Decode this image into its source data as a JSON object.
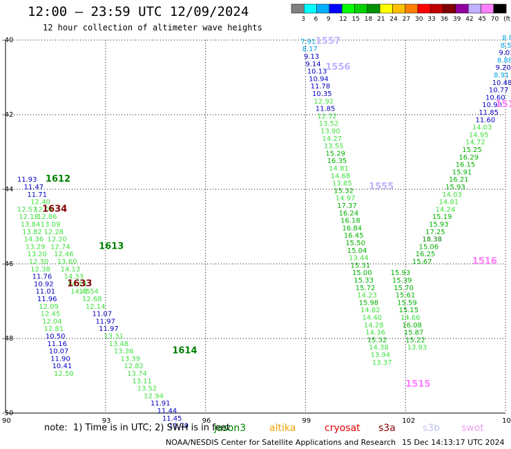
{
  "title": "12:00 — 23:59 UTC 12/09/2024",
  "subtitle": "12 hour collection of altimeter wave heights",
  "note": "note:  1) Time is in UTC; 2) SWH is in feet",
  "credit": "NOAA/NESDIS Center for Satellite Applications and Research",
  "timestamp": "15 Dec 14:13:17 UTC 2024",
  "satellites": [
    {
      "label": "jason3",
      "color": "#008000"
    },
    {
      "label": "altika",
      "color": "#f0a000"
    },
    {
      "label": "cryosat",
      "color": "#e00000"
    },
    {
      "label": "s3a",
      "color": "#8b0000"
    },
    {
      "label": "s3b",
      "color": "#c0c0f0"
    },
    {
      "label": "swot",
      "color": "#f0a0f0"
    }
  ],
  "legend": {
    "labels": [
      "3",
      "6",
      "9",
      "12",
      "15",
      "18",
      "21",
      "24",
      "27",
      "30",
      "33",
      "36",
      "39",
      "42",
      "45",
      "70",
      "(ft)"
    ],
    "colors": [
      "#808080",
      "#00ffff",
      "#00b0ff",
      "#0000ff",
      "#00ff00",
      "#00d000",
      "#009000",
      "#ffff00",
      "#ffc000",
      "#ff8000",
      "#ff0000",
      "#c00000",
      "#800000",
      "#9000a0",
      "#c0b0ff",
      "#ff80ff",
      "#000000"
    ]
  },
  "chart_data": {
    "type": "scatter",
    "xlim": [
      90,
      105
    ],
    "ylim": [
      -50,
      -40
    ],
    "x_ticks": [
      "90",
      "93",
      "96",
      "99",
      "102",
      "105"
    ],
    "y_ticks": [
      "-40",
      "-42",
      "-44",
      "-46",
      "-48",
      "-50"
    ],
    "grid": true,
    "tracks": [
      {
        "id": "1612",
        "color": "#008000",
        "label_at": [
          91.2,
          -43.8
        ],
        "points": [
          [
            90.35,
            -43.8,
            "11.93"
          ],
          [
            90.55,
            -44.0,
            "11.47"
          ],
          [
            90.65,
            -44.2,
            "11.71"
          ],
          [
            90.75,
            -44.4,
            "12.40"
          ],
          [
            90.85,
            -44.6,
            "12.01"
          ],
          [
            90.95,
            -44.8,
            "12.86"
          ],
          [
            91.05,
            -45.0,
            "13.09"
          ],
          [
            91.15,
            -45.2,
            "12.28"
          ],
          [
            91.25,
            -45.4,
            "12.20"
          ],
          [
            91.35,
            -45.6,
            "12.74"
          ],
          [
            91.45,
            -45.8,
            "12.46"
          ],
          [
            91.55,
            -46.0,
            "13.60"
          ],
          [
            91.65,
            -46.2,
            "14.13"
          ],
          [
            91.75,
            -46.4,
            "14.33"
          ],
          [
            91.85,
            -46.6,
            "14.13"
          ],
          [
            91.95,
            -46.8,
            "14.45"
          ]
        ]
      },
      {
        "id": "1634",
        "color": "#800000",
        "label_at": [
          91.1,
          -44.6
        ],
        "points": [
          [
            90.35,
            -44.6,
            "12.57"
          ],
          [
            90.4,
            -44.8,
            "12.18"
          ],
          [
            90.45,
            -45.0,
            "13.84"
          ],
          [
            90.5,
            -45.2,
            "13.82"
          ],
          [
            90.55,
            -45.4,
            "14.36"
          ],
          [
            90.6,
            -45.6,
            "13.29"
          ],
          [
            90.65,
            -45.8,
            "13.20"
          ],
          [
            90.7,
            -46.0,
            "12.30"
          ],
          [
            90.75,
            -46.2,
            "12.38"
          ],
          [
            90.8,
            -46.4,
            "11.76"
          ],
          [
            90.85,
            -46.6,
            "10.92"
          ],
          [
            90.9,
            -46.8,
            "11.01"
          ],
          [
            90.95,
            -47.0,
            "11.96"
          ],
          [
            91.0,
            -47.2,
            "12.09"
          ],
          [
            91.05,
            -47.4,
            "12.45"
          ],
          [
            91.1,
            -47.6,
            "12.04"
          ],
          [
            91.15,
            -47.8,
            "12.81"
          ],
          [
            91.2,
            -48.0,
            "10.50"
          ],
          [
            91.25,
            -48.2,
            "11.16"
          ],
          [
            91.3,
            -48.4,
            "10.07"
          ],
          [
            91.35,
            -48.6,
            "11.90"
          ],
          [
            91.4,
            -48.8,
            "10.41"
          ],
          [
            91.45,
            -49.0,
            "12.50"
          ]
        ]
      },
      {
        "id": "1633",
        "color": "#800000",
        "label_at": [
          91.85,
          -46.6
        ],
        "points": []
      },
      {
        "id": "1613",
        "color": "#008000",
        "label_at": [
          92.8,
          -45.6
        ],
        "points": [
          [
            92.2,
            -46.8,
            "13.54"
          ],
          [
            92.3,
            -47.0,
            "12.68"
          ],
          [
            92.4,
            -47.2,
            "12.14"
          ],
          [
            92.6,
            -47.4,
            "11.07"
          ],
          [
            92.7,
            -47.6,
            "11.97"
          ],
          [
            92.8,
            -47.8,
            "11.97"
          ],
          [
            92.95,
            -48.0,
            "13.31"
          ],
          [
            93.1,
            -48.2,
            "13.48"
          ],
          [
            93.25,
            -48.4,
            "13.36"
          ],
          [
            93.45,
            -48.6,
            "13.39"
          ],
          [
            93.55,
            -48.8,
            "12.82"
          ],
          [
            93.65,
            -49.0,
            "13.74"
          ],
          [
            93.8,
            -49.2,
            "13.11"
          ],
          [
            93.95,
            -49.4,
            "13.52"
          ],
          [
            94.15,
            -49.6,
            "12.94"
          ],
          [
            94.35,
            -49.8,
            "11.91"
          ],
          [
            94.55,
            -50.0,
            "11.44"
          ],
          [
            94.7,
            -50.2,
            "11.45"
          ],
          [
            94.9,
            -50.4,
            "11.79"
          ]
        ]
      },
      {
        "id": "1614",
        "color": "#008000",
        "label_at": [
          95.0,
          -48.4
        ],
        "points": []
      },
      {
        "id": "1557",
        "color": "#c0b0ff",
        "label_at": [
          99.3,
          -40.1
        ],
        "points": [
          [
            98.85,
            -40.1,
            "7.91"
          ],
          [
            98.9,
            -40.3,
            "8.17"
          ],
          [
            98.95,
            -40.5,
            "9.13"
          ],
          [
            99.0,
            -40.7,
            "9.14"
          ],
          [
            99.05,
            -40.9,
            "10.13"
          ],
          [
            99.1,
            -41.1,
            "10.94"
          ],
          [
            99.15,
            -41.3,
            "11.78"
          ],
          [
            99.2,
            -41.5,
            "10.35"
          ],
          [
            99.25,
            -41.7,
            "12.92"
          ],
          [
            99.3,
            -41.9,
            "11.85"
          ],
          [
            99.35,
            -42.1,
            "12.72"
          ],
          [
            99.4,
            -42.3,
            "13.52"
          ],
          [
            99.45,
            -42.5,
            "13.90"
          ],
          [
            99.5,
            -42.7,
            "14.27"
          ],
          [
            99.55,
            -42.9,
            "13.55"
          ],
          [
            99.6,
            -43.1,
            "15.29"
          ],
          [
            99.65,
            -43.3,
            "16.35"
          ],
          [
            99.7,
            -43.5,
            "14.81"
          ],
          [
            99.75,
            -43.7,
            "14.68"
          ],
          [
            99.8,
            -43.9,
            "13.85"
          ],
          [
            99.85,
            -44.1,
            "15.32"
          ],
          [
            99.9,
            -44.3,
            "14.97"
          ],
          [
            99.95,
            -44.5,
            "17.37"
          ],
          [
            100.0,
            -44.7,
            "16.24"
          ],
          [
            100.05,
            -44.9,
            "16.18"
          ],
          [
            100.1,
            -45.1,
            "16.84"
          ],
          [
            100.15,
            -45.3,
            "16.45"
          ],
          [
            100.2,
            -45.5,
            "15.50"
          ],
          [
            100.25,
            -45.7,
            "15.04"
          ],
          [
            100.3,
            -45.9,
            "13.44"
          ],
          [
            100.35,
            -46.1,
            "15.31"
          ],
          [
            100.4,
            -46.3,
            "15.00"
          ],
          [
            100.45,
            -46.5,
            "15.33"
          ],
          [
            100.5,
            -46.7,
            "15.72"
          ],
          [
            100.55,
            -46.9,
            "14.23"
          ],
          [
            100.6,
            -47.1,
            "15.98"
          ],
          [
            100.65,
            -47.3,
            "14.82"
          ],
          [
            100.7,
            -47.5,
            "14.40"
          ],
          [
            100.75,
            -47.7,
            "14.28"
          ],
          [
            100.8,
            -47.9,
            "14.36"
          ],
          [
            100.85,
            -48.1,
            "15.32"
          ],
          [
            100.9,
            -48.3,
            "14.38"
          ],
          [
            100.95,
            -48.5,
            "13.94"
          ],
          [
            101.0,
            -48.7,
            "13.37"
          ]
        ]
      },
      {
        "id": "1556",
        "color": "#c0b0ff",
        "label_at": [
          99.6,
          -40.8
        ],
        "points": []
      },
      {
        "id": "1555",
        "color": "#c0b0ff",
        "label_at": [
          100.9,
          -44.0
        ],
        "points": []
      },
      {
        "id": "1515",
        "color": "#ff80ff",
        "label_at": [
          102.0,
          -49.3
        ],
        "points": [
          [
            101.55,
            -46.3,
            "15.93"
          ],
          [
            101.6,
            -46.5,
            "15.39"
          ],
          [
            101.65,
            -46.7,
            "15.70"
          ],
          [
            101.7,
            -46.9,
            "15.61"
          ],
          [
            101.75,
            -47.1,
            "15.59"
          ],
          [
            101.8,
            -47.3,
            "15.15"
          ],
          [
            101.85,
            -47.5,
            "14.66"
          ],
          [
            101.9,
            -47.7,
            "16.08"
          ],
          [
            101.95,
            -47.9,
            "15.87"
          ],
          [
            102.0,
            -48.1,
            "15.22"
          ],
          [
            102.05,
            -48.3,
            "13.93"
          ]
        ]
      },
      {
        "id": "1516",
        "color": "#ff80ff",
        "label_at": [
          104.0,
          -46.0
        ],
        "points": [
          [
            104.9,
            -40.0,
            "8.8"
          ],
          [
            104.85,
            -40.2,
            "8.57"
          ],
          [
            104.8,
            -40.4,
            "9.03"
          ],
          [
            104.75,
            -40.6,
            "8.88"
          ],
          [
            104.7,
            -40.8,
            "9.20"
          ],
          [
            104.65,
            -41.0,
            "8.91"
          ],
          [
            104.6,
            -41.2,
            "10.48"
          ],
          [
            104.5,
            -41.4,
            "10.77"
          ],
          [
            104.4,
            -41.6,
            "10.60"
          ],
          [
            104.3,
            -41.8,
            "10.90"
          ],
          [
            104.2,
            -42.0,
            "11.85"
          ],
          [
            104.1,
            -42.2,
            "11.60"
          ],
          [
            104.0,
            -42.4,
            "14.03"
          ],
          [
            103.9,
            -42.6,
            "14.95"
          ],
          [
            103.8,
            -42.8,
            "14.72"
          ],
          [
            103.7,
            -43.0,
            "15.25"
          ],
          [
            103.6,
            -43.2,
            "16.29"
          ],
          [
            103.5,
            -43.4,
            "16.15"
          ],
          [
            103.4,
            -43.6,
            "15.91"
          ],
          [
            103.3,
            -43.8,
            "16.21"
          ],
          [
            103.2,
            -44.0,
            "15.93"
          ],
          [
            103.1,
            -44.2,
            "14.03"
          ],
          [
            103.0,
            -44.4,
            "14.81"
          ],
          [
            102.9,
            -44.6,
            "14.24"
          ],
          [
            102.8,
            -44.8,
            "15.19"
          ],
          [
            102.7,
            -45.0,
            "15.93"
          ],
          [
            102.6,
            -45.2,
            "17.25"
          ],
          [
            102.5,
            -45.4,
            "18.38"
          ],
          [
            102.4,
            -45.6,
            "15.06"
          ],
          [
            102.3,
            -45.8,
            "16.25"
          ],
          [
            102.2,
            -46.0,
            "15.67"
          ]
        ]
      },
      {
        "id": "151",
        "color": "#ff80ff",
        "label_at": [
          104.7,
          -41.8
        ],
        "points": []
      }
    ]
  }
}
